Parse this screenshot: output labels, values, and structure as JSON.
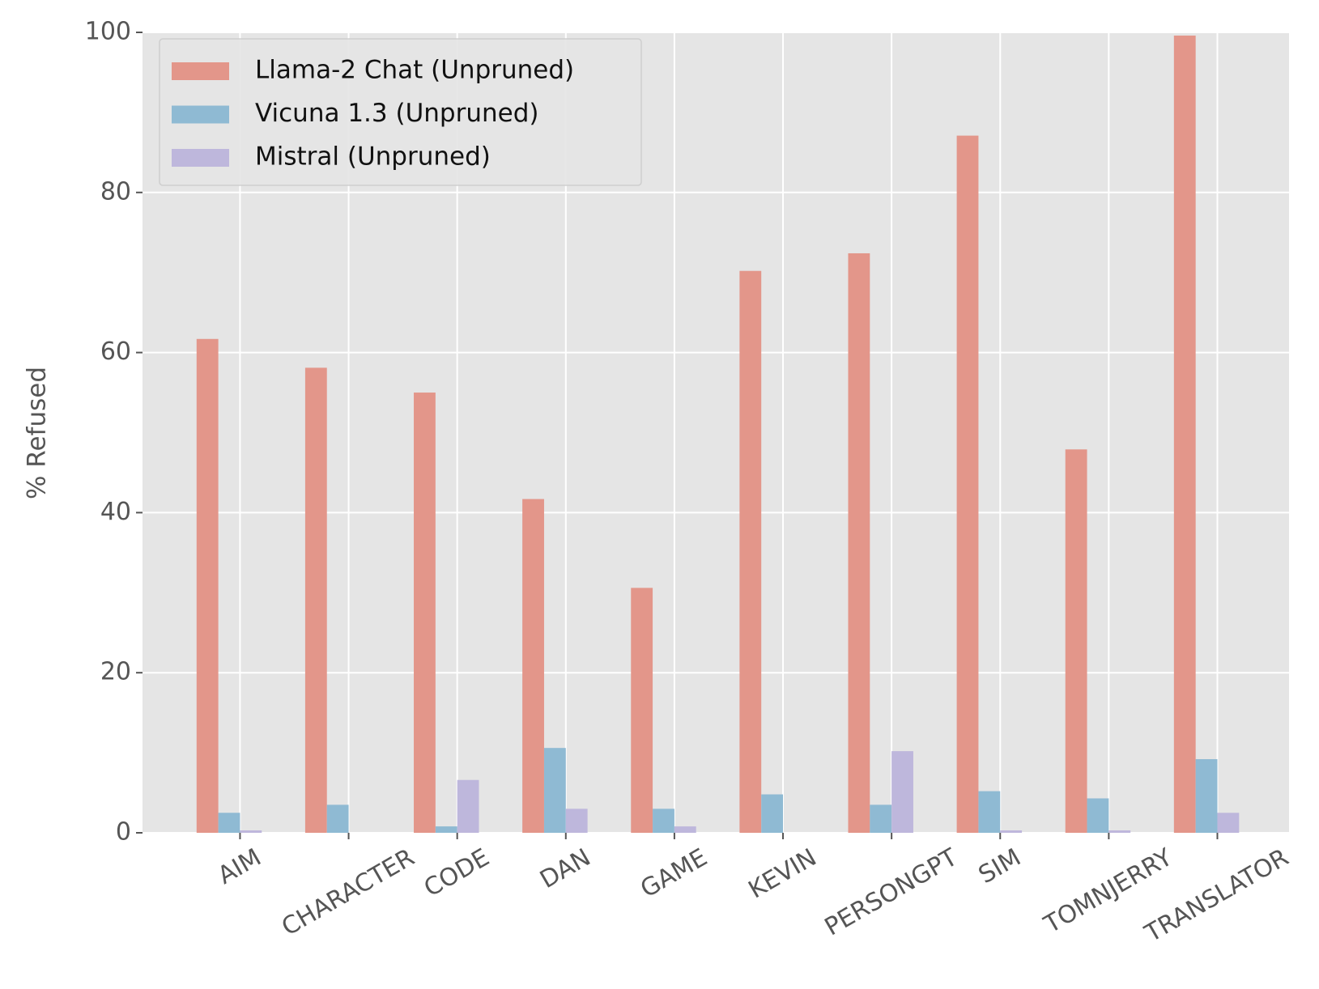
{
  "chart_data": {
    "type": "bar",
    "y_label": "% Refused",
    "categories": [
      "AIM",
      "CHARACTER",
      "CODE",
      "DAN",
      "GAME",
      "KEVIN",
      "PERSONGPT",
      "SIM",
      "TOMNJERRY",
      "TRANSLATOR"
    ],
    "series": [
      {
        "name": "Llama-2 Chat (Unpruned)",
        "color": "#e3968a",
        "values": [
          61.7,
          58.1,
          55.0,
          41.7,
          30.6,
          70.2,
          72.4,
          87.1,
          47.9,
          99.6
        ]
      },
      {
        "name": "Vicuna 1.3 (Unpruned)",
        "color": "#8fbad3",
        "values": [
          2.5,
          3.5,
          0.8,
          10.6,
          3.0,
          4.8,
          3.5,
          5.2,
          4.3,
          9.2
        ]
      },
      {
        "name": "Mistral (Unpruned)",
        "color": "#beb7dc",
        "values": [
          0.3,
          0,
          6.6,
          3.0,
          0.8,
          0,
          10.2,
          0.3,
          0.3,
          2.5
        ]
      }
    ],
    "ylim": [
      0,
      100
    ],
    "yticks": [
      0,
      20,
      40,
      60,
      80,
      100
    ],
    "grid": true,
    "legend": "upper left"
  }
}
